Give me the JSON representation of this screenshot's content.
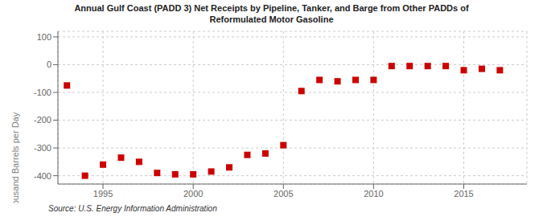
{
  "chart_data": {
    "type": "scatter",
    "title": "Annual Gulf Coast (PADD 3) Net Receipts by Pipeline, Tanker, and Barge from Other PADDs of\nReformulated Motor Gasoline",
    "y_label": "Thousand Barrels per Day",
    "annotations": [
      "Source: U.S. Energy Information Administration"
    ],
    "x": [
      1993,
      1994,
      1995,
      1996,
      1997,
      1998,
      1999,
      2000,
      2001,
      2002,
      2003,
      2004,
      2005,
      2006,
      2007,
      2008,
      2009,
      2010,
      2011,
      2012,
      2013,
      2014,
      2015,
      2016,
      2017
    ],
    "values": [
      -75,
      -400,
      -360,
      -335,
      -350,
      -390,
      -395,
      -395,
      -385,
      -370,
      -325,
      -320,
      -290,
      -95,
      -55,
      -60,
      -55,
      -55,
      -5,
      -5,
      -5,
      -5,
      -20,
      -15,
      -20
    ],
    "color": "#cc0000",
    "marker": "square",
    "xlim": [
      1992.5,
      2018.5
    ],
    "ylim": [
      -430,
      120
    ],
    "xticks": [
      1995,
      2000,
      2005,
      2010,
      2015
    ],
    "yticks": [
      100,
      0,
      -100,
      -200,
      -300,
      -400
    ],
    "grid": true
  }
}
